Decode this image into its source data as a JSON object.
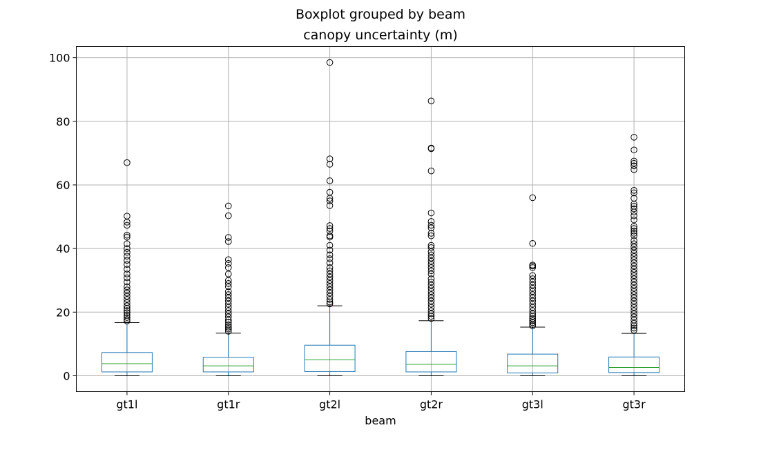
{
  "chart_data": {
    "type": "boxplot",
    "suptitle": "Boxplot grouped by beam",
    "title": "canopy uncertainty (m)",
    "xlabel": "beam",
    "ylabel": "",
    "ylim": [
      -5,
      103.5
    ],
    "yticks": [
      0,
      20,
      40,
      60,
      80,
      100
    ],
    "grid": true,
    "colors": {
      "box": "#1f77b4",
      "median": "#2ca02c",
      "whisker": "#1f77b4",
      "cap": "#000000",
      "flier": "#000000",
      "grid": "#b0b0b0"
    },
    "categories": [
      "gt1l",
      "gt1r",
      "gt2l",
      "gt2r",
      "gt3l",
      "gt3r"
    ],
    "series": [
      {
        "q1": 1.2,
        "median": 3.8,
        "q3": 7.3,
        "whisker_low": 0.0,
        "whisker_high": 16.7,
        "fliers": [
          67.0,
          50.2,
          48.3,
          47.3,
          44.2,
          43.6,
          41.5,
          40.0,
          38.8,
          37.6,
          36.3,
          35.0,
          33.5,
          32.0,
          30.8,
          29.5,
          28.0,
          27.0,
          26.0,
          25.0,
          24.0,
          23.0,
          22.0,
          21.2,
          20.5,
          19.8,
          19.0,
          18.3,
          17.7,
          17.2
        ]
      },
      {
        "q1": 1.2,
        "median": 3.1,
        "q3": 5.8,
        "whisker_low": 0.0,
        "whisker_high": 13.4,
        "fliers": [
          53.4,
          50.3,
          43.5,
          42.2,
          36.5,
          35.3,
          34.0,
          32.0,
          30.0,
          29.0,
          28.0,
          26.5,
          25.5,
          24.5,
          23.5,
          22.5,
          21.5,
          20.5,
          19.5,
          18.5,
          17.5,
          16.8,
          16.0,
          15.3,
          14.7,
          14.0
        ]
      },
      {
        "q1": 1.3,
        "median": 5.0,
        "q3": 9.6,
        "whisker_low": 0.0,
        "whisker_high": 22.0,
        "fliers": [
          98.5,
          68.2,
          66.5,
          61.3,
          57.7,
          55.8,
          55.0,
          53.5,
          47.2,
          46.3,
          45.5,
          44.0,
          43.6,
          41.0,
          39.5,
          38.0,
          36.8,
          35.5,
          34.0,
          33.0,
          32.0,
          31.0,
          30.0,
          29.0,
          28.0,
          27.0,
          26.0,
          25.0,
          24.0,
          23.2,
          22.6
        ]
      },
      {
        "q1": 1.2,
        "median": 3.6,
        "q3": 7.6,
        "whisker_low": 0.0,
        "whisker_high": 17.3,
        "fliers": [
          86.4,
          71.6,
          71.4,
          64.4,
          51.2,
          48.5,
          47.3,
          46.5,
          44.8,
          44.0,
          41.0,
          40.3,
          39.0,
          38.0,
          37.0,
          36.0,
          35.0,
          34.0,
          33.0,
          32.0,
          30.5,
          29.5,
          28.5,
          27.5,
          26.5,
          25.5,
          24.5,
          23.5,
          22.5,
          21.5,
          20.5,
          19.5,
          18.7,
          18.0
        ]
      },
      {
        "q1": 0.9,
        "median": 3.1,
        "q3": 6.8,
        "whisker_low": 0.0,
        "whisker_high": 15.3,
        "fliers": [
          56.0,
          41.6,
          34.8,
          34.5,
          34.0,
          31.5,
          30.5,
          29.5,
          28.5,
          27.5,
          26.5,
          25.5,
          24.5,
          23.5,
          22.5,
          21.5,
          20.5,
          19.5,
          18.7,
          18.0,
          17.3,
          16.7,
          16.1,
          15.7
        ]
      },
      {
        "q1": 1.0,
        "median": 2.6,
        "q3": 5.9,
        "whisker_low": 0.0,
        "whisker_high": 13.3,
        "fliers": [
          75.0,
          71.0,
          67.5,
          66.8,
          66.0,
          64.8,
          58.3,
          57.5,
          55.8,
          54.0,
          53.3,
          52.5,
          51.5,
          50.3,
          49.0,
          47.0,
          46.3,
          45.5,
          44.8,
          44.0,
          42.5,
          41.5,
          40.5,
          39.5,
          38.5,
          37.5,
          36.5,
          35.5,
          34.5,
          33.5,
          32.5,
          31.5,
          30.5,
          29.5,
          28.5,
          27.5,
          26.5,
          25.5,
          24.5,
          23.5,
          22.5,
          21.5,
          20.5,
          19.5,
          18.5,
          17.5,
          16.5,
          15.7,
          15.0,
          14.3
        ]
      }
    ]
  }
}
